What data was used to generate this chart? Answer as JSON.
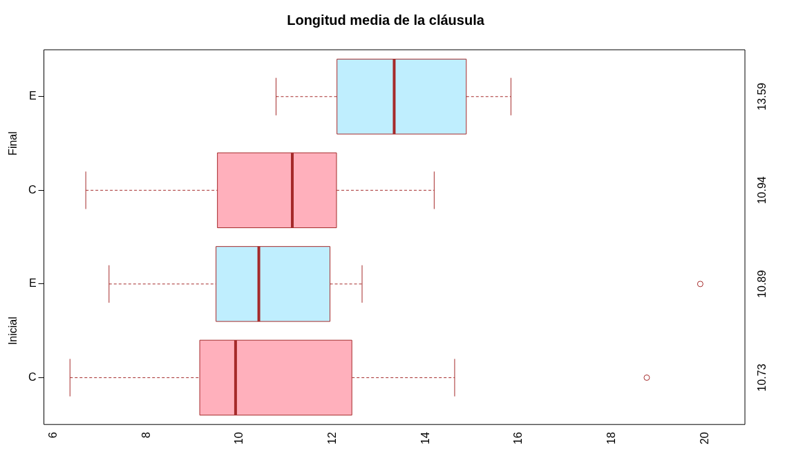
{
  "chart_data": {
    "type": "box",
    "orientation": "horizontal",
    "title": "Longitud media de la cláusula",
    "categories": [
      "E",
      "C",
      "E",
      "C"
    ],
    "colors": [
      "#bfeefe",
      "#ffb0bc",
      "#bfeefe",
      "#ffb0bc"
    ],
    "boxes": [
      {
        "low": 10.78,
        "q1": 12.09,
        "median": 13.32,
        "q3": 14.87,
        "high": 15.83
      },
      {
        "low": 6.69,
        "q1": 9.52,
        "median": 11.13,
        "q3": 12.08,
        "high": 14.18
      },
      {
        "low": 7.19,
        "q1": 9.49,
        "median": 10.41,
        "q3": 11.94,
        "high": 12.63,
        "outliers": [
          19.9
        ]
      },
      {
        "low": 6.35,
        "q1": 9.14,
        "median": 9.91,
        "q3": 12.41,
        "high": 14.62,
        "outliers": [
          18.75
        ]
      }
    ],
    "value_labels": [
      "13.59",
      "10.94",
      "10.89",
      "10.73"
    ],
    "annotations": [
      "Final",
      "Inicial"
    ],
    "xlim": [
      5.79,
      20.86
    ],
    "xticks": [
      6,
      8,
      10,
      12,
      14,
      16,
      18,
      20
    ],
    "grid": false,
    "legend": false
  }
}
